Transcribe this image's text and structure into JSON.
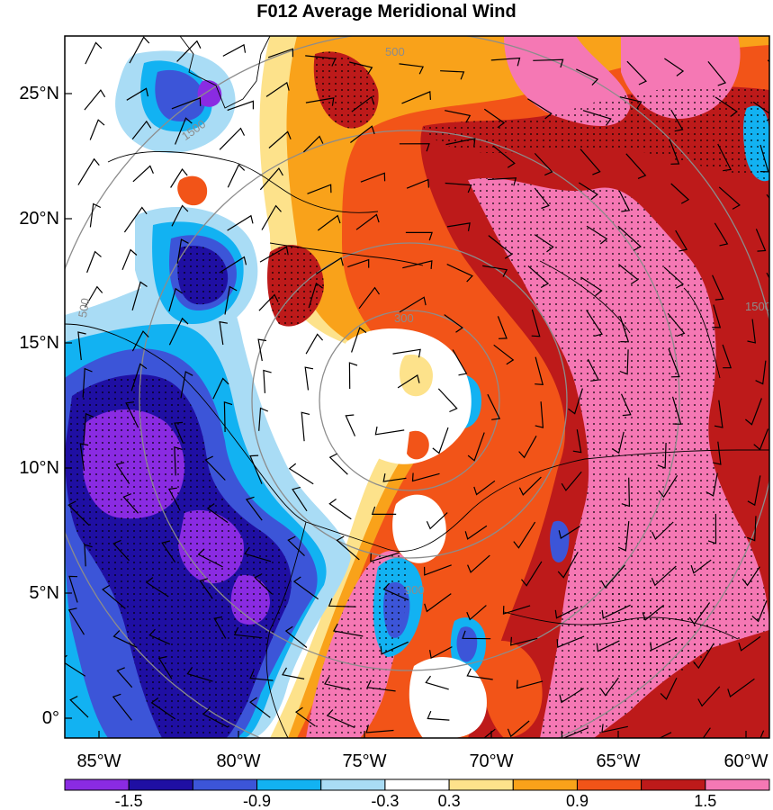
{
  "title": "F012 Average Meridional Wind",
  "map": {
    "lat_ticks": [
      {
        "label": "25°N",
        "value": 25
      },
      {
        "label": "20°N",
        "value": 20
      },
      {
        "label": "15°N",
        "value": 15
      },
      {
        "label": "10°N",
        "value": 10
      },
      {
        "label": "5°N",
        "value": 5
      },
      {
        "label": "0°",
        "value": 0
      }
    ],
    "lon_ticks": [
      {
        "label": "85°W",
        "value": -85
      },
      {
        "label": "80°W",
        "value": -80
      },
      {
        "label": "75°W",
        "value": -75
      },
      {
        "label": "70°W",
        "value": -70
      },
      {
        "label": "65°W",
        "value": -65
      },
      {
        "label": "60°W",
        "value": -60
      }
    ],
    "lon_range": [
      -87.5,
      -59.3
    ],
    "lat_range": [
      -0.6,
      27.4
    ],
    "range_ring_labels": [
      "300",
      "500",
      "900",
      "1500"
    ],
    "stippling": "dotted over significant regions",
    "wind_barbs": true,
    "coastlines": true
  },
  "colorbar": {
    "levels": [
      -1.8,
      -1.5,
      -1.2,
      -0.9,
      -0.6,
      -0.3,
      0.3,
      0.6,
      0.9,
      1.2,
      1.5
    ],
    "colors": [
      "#8a2be2",
      "#1f0fa3",
      "#3c55d8",
      "#12b2f2",
      "#a9dcf5",
      "#ffffff",
      "#fde28b",
      "#f9a21a",
      "#f25418",
      "#bd1a1a",
      "#f578b4"
    ],
    "tick_labels": [
      {
        "label": "-1.5",
        "boundary": 1
      },
      {
        "label": "-0.9",
        "boundary": 3
      },
      {
        "label": "-0.3",
        "boundary": 5
      },
      {
        "label": "0.3",
        "boundary": 6
      },
      {
        "label": "0.9",
        "boundary": 8
      },
      {
        "label": "1.5",
        "boundary": 10
      }
    ]
  }
}
